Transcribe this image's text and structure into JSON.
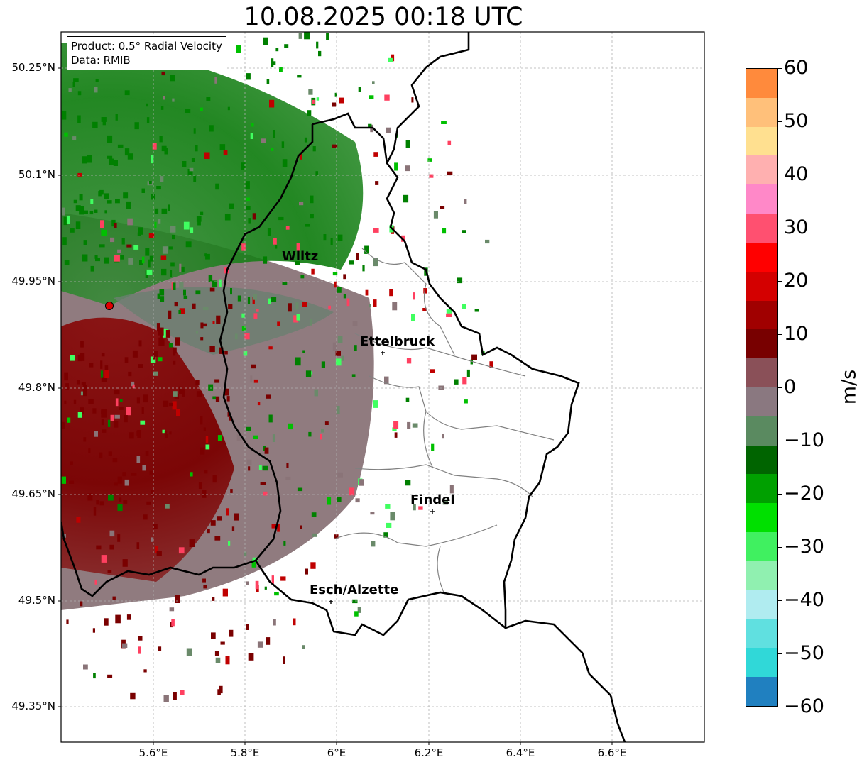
{
  "title": "10.08.2025 00:18 UTC",
  "info": {
    "product": "Product: 0.5° Radial Velocity",
    "data": "Data: RMIB"
  },
  "lat_labels": [
    "50.25°N",
    "50.1°N",
    "49.95°N",
    "49.8°N",
    "49.65°N",
    "49.5°N",
    "49.35°N"
  ],
  "lon_labels": [
    "5.6°E",
    "5.8°E",
    "6°E",
    "6.2°E",
    "6.4°E",
    "6.6°E"
  ],
  "cities": [
    "Wiltz",
    "Ettelbruck",
    "Findel",
    "Esch/Alzette"
  ],
  "colorbar": {
    "label": "m/s",
    "ticks": [
      "60",
      "50",
      "40",
      "30",
      "20",
      "10",
      "0",
      "−10",
      "−20",
      "−30",
      "−40",
      "−50",
      "−60"
    ],
    "colors": [
      "#ff8a3c",
      "#ffc07a",
      "#ffe090",
      "#ffb0b0",
      "#ff88c8",
      "#ff5070",
      "#ff0000",
      "#d40000",
      "#a00000",
      "#780000",
      "#8a5058",
      "#8a7880",
      "#5a8a60",
      "#006400",
      "#00a000",
      "#00e000",
      "#40f060",
      "#90f0b0",
      "#b0ecf0",
      "#60e0e0",
      "#30d8d8",
      "#2080c0"
    ]
  },
  "colors": {
    "inbound": "#008000",
    "outbound": "#7a0000",
    "neutral": "#8a7478",
    "radar_marker": "#e00000"
  }
}
